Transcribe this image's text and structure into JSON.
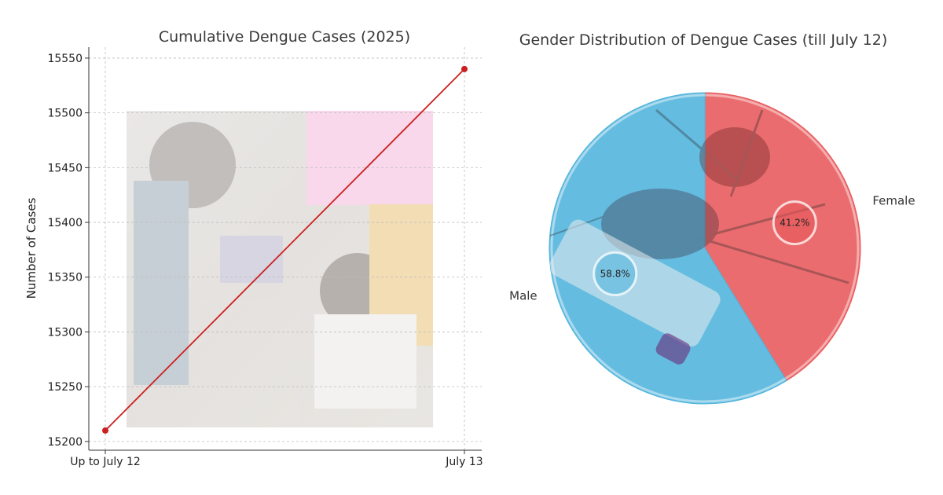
{
  "chart_data": [
    {
      "type": "line",
      "title": "Cumulative Dengue Cases (2025)",
      "xlabel": "",
      "ylabel": "Number of Cases",
      "categories": [
        "Up to July 12",
        "July 13"
      ],
      "values": [
        15210,
        15540
      ],
      "yticks": [
        15200,
        15250,
        15300,
        15350,
        15400,
        15450,
        15500,
        15550
      ],
      "ylim": [
        15192,
        15560
      ],
      "grid": true,
      "color": "#cc1f1f"
    },
    {
      "type": "pie",
      "title": "Gender Distribution of Dengue Cases (till July 12)",
      "slices": [
        {
          "label": "Female",
          "value": 41.2,
          "pct_label": "41.2%",
          "color": "#e8585a"
        },
        {
          "label": "Male",
          "value": 58.8,
          "pct_label": "58.8%",
          "color": "#4fb3dc"
        }
      ]
    }
  ]
}
